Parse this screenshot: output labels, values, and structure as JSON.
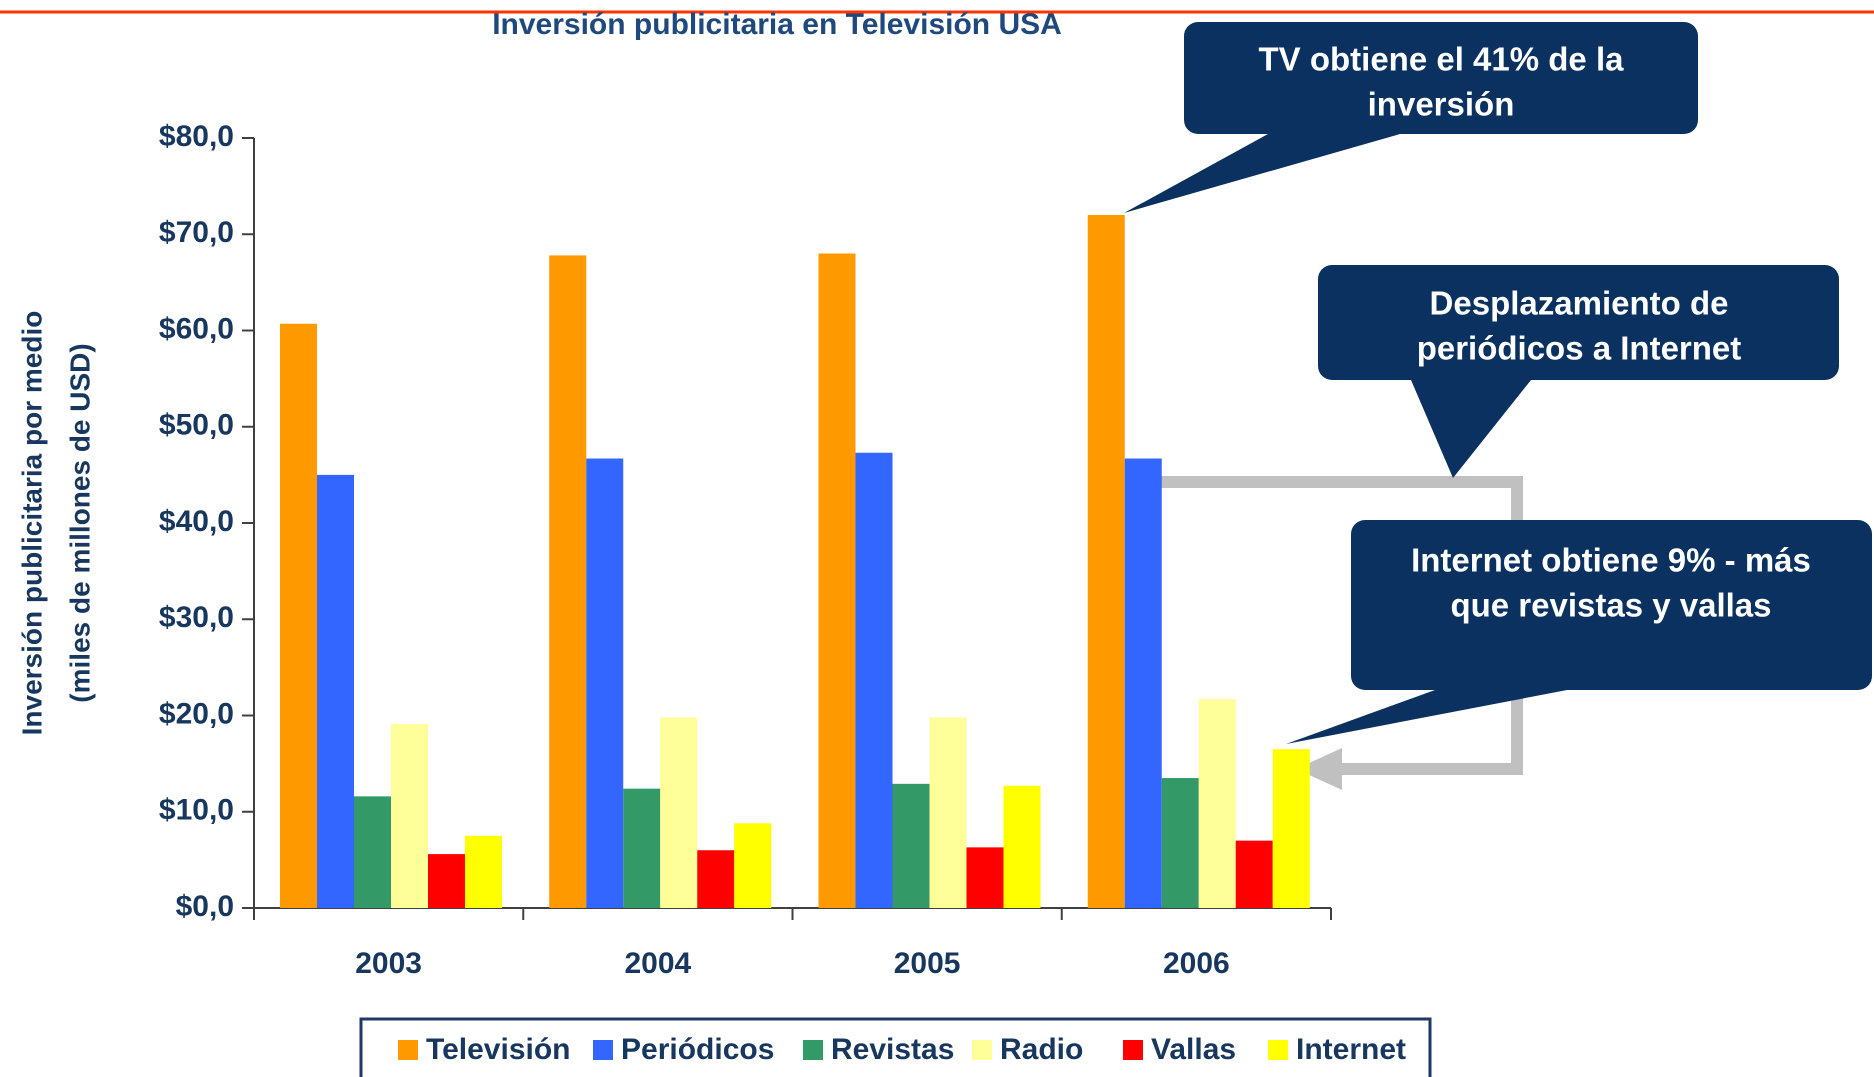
{
  "chart_data": {
    "type": "bar",
    "title": "Inversión publicitaria en Televisión USA",
    "ylabel": [
      "Inversión publicitaria por medio",
      "(miles de millones de USD)"
    ],
    "categories": [
      "2003",
      "2004",
      "2005",
      "2006"
    ],
    "series": [
      {
        "name": "Televisión",
        "color": "#ff9900",
        "values": [
          60.7,
          67.8,
          68.0,
          72.0
        ]
      },
      {
        "name": "Periódicos",
        "color": "#3366ff",
        "values": [
          45.0,
          46.7,
          47.3,
          46.7
        ]
      },
      {
        "name": "Revistas",
        "color": "#339966",
        "values": [
          11.6,
          12.4,
          12.9,
          13.5
        ]
      },
      {
        "name": "Radio",
        "color": "#ffff99",
        "values": [
          19.1,
          19.8,
          19.8,
          21.7
        ]
      },
      {
        "name": "Vallas",
        "color": "#ff0000",
        "values": [
          5.6,
          6.0,
          6.3,
          7.0
        ]
      },
      {
        "name": "Internet",
        "color": "#ffff00",
        "values": [
          7.5,
          8.8,
          12.7,
          16.5
        ]
      }
    ],
    "ylim": [
      0,
      80
    ],
    "yticks": [
      {
        "value": 0,
        "label": "$0,0"
      },
      {
        "value": 10,
        "label": "$10,0"
      },
      {
        "value": 20,
        "label": "$20,0"
      },
      {
        "value": 30,
        "label": "$30,0"
      },
      {
        "value": 40,
        "label": "$40,0"
      },
      {
        "value": 50,
        "label": "$50,0"
      },
      {
        "value": 60,
        "label": "$60,0"
      },
      {
        "value": 70,
        "label": "$70,0"
      },
      {
        "value": 80,
        "label": "$80,0"
      }
    ],
    "grid": false,
    "legend": "bottom",
    "annotations": [
      [
        "TV obtiene el 41% de la",
        "inversión"
      ],
      [
        "Desplazamiento de",
        "periódicos a Internet"
      ],
      [
        "Internet obtiene 9% - más",
        "que revistas y vallas"
      ]
    ]
  }
}
